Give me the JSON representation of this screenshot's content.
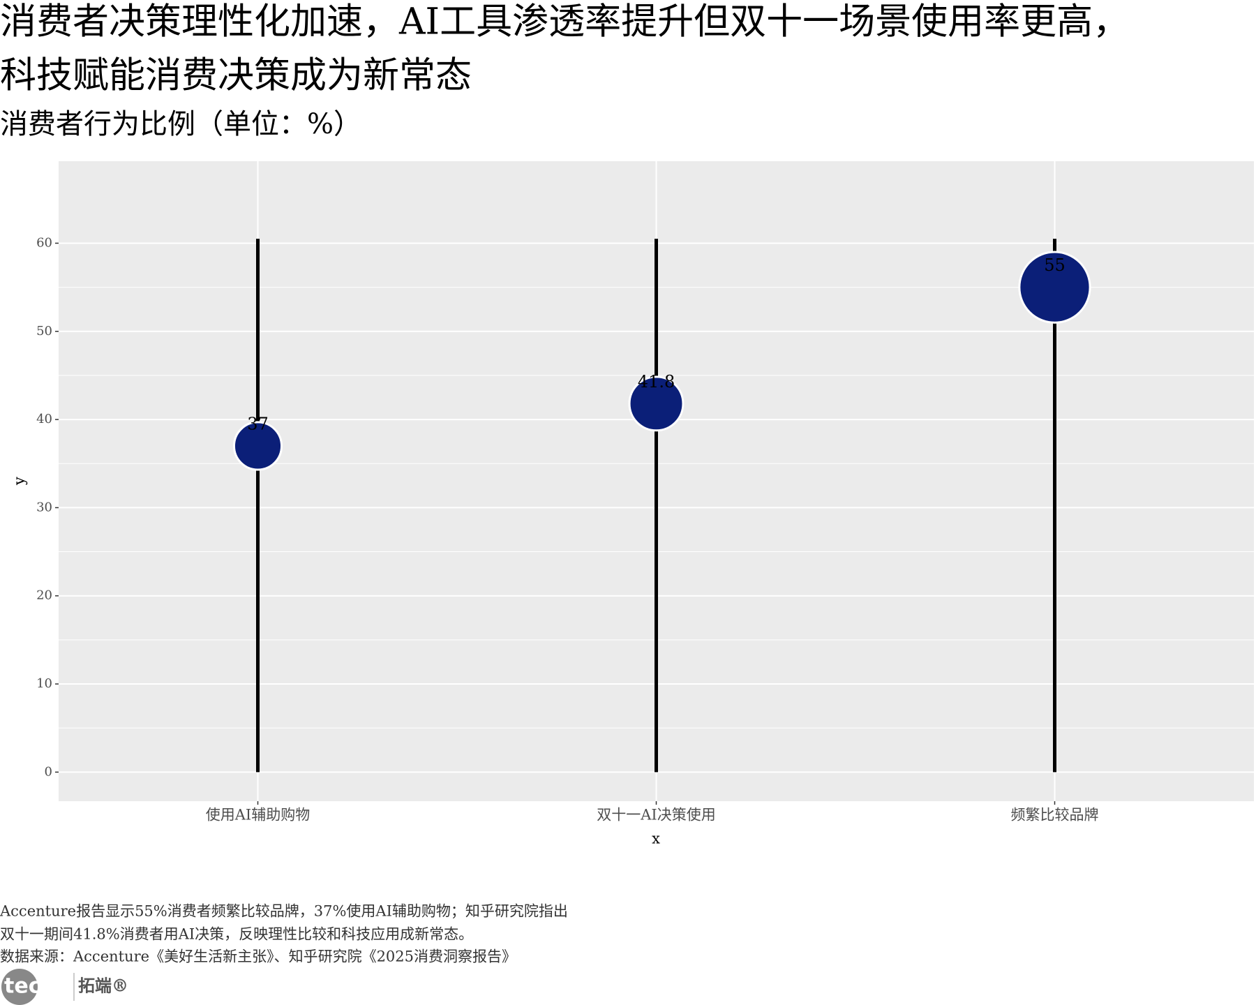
{
  "chart_data": {
    "type": "lollipop",
    "title": [
      "消费者决策理性化加速，AI工具渗透率提升但双十一场景使用率更高，",
      "科技赋能消费决策成为新常态"
    ],
    "subtitle": "消费者行为比例（单位：%）",
    "x_label": "x",
    "y_label": "y",
    "categories": [
      "使用AI辅助购物",
      "双十一AI决策使用",
      "频繁比较品牌"
    ],
    "values": [
      37,
      41.8,
      55
    ],
    "stem_end": 60.5,
    "color": "#0b1f78",
    "stem_color": "#000000",
    "ylim": [
      -3.3,
      69.3
    ],
    "yticks": [
      0,
      10,
      20,
      30,
      40,
      50,
      60
    ],
    "grid": true,
    "caption": [
      "Accenture报告显示55%消费者频繁比较品牌，37%使用AI辅助购物；知乎研究院指出",
      "双十一期间41.8%消费者用AI决策，反映理性比较和科技应用成新常态。",
      "数据来源：Accenture《美好生活新主张》、知乎研究院《2025消费洞察报告》"
    ]
  },
  "brand": "tecdat",
  "brand_cn": "拓端®"
}
